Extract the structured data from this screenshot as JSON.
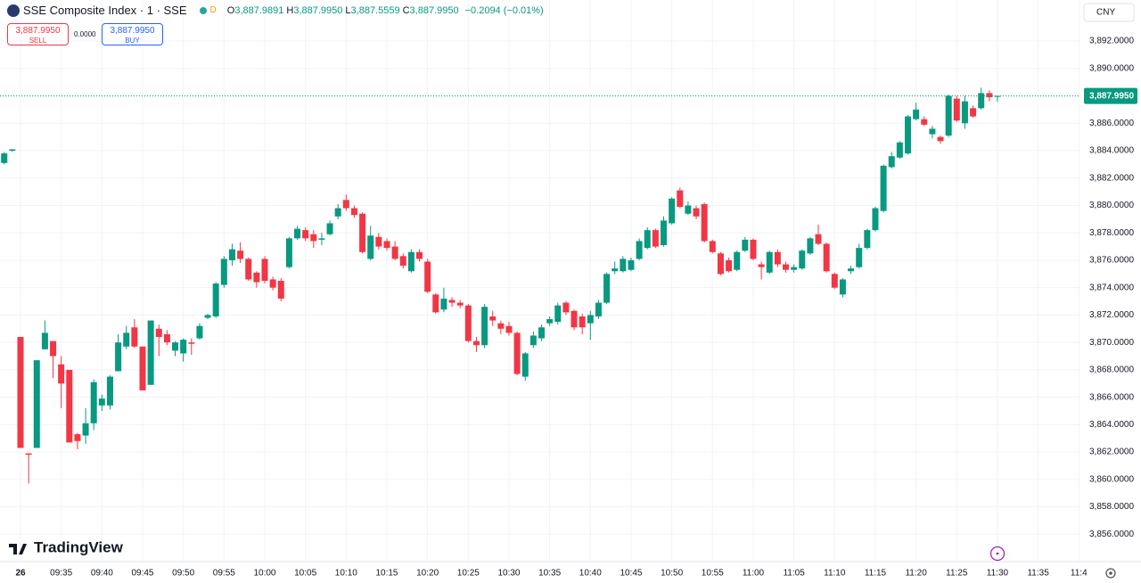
{
  "brand": "TradingView",
  "status": "D",
  "currency": "CNY",
  "change": "−0.2094 (−0.01%)",
  "ohlc_legend": [
    {
      "label": "O",
      "value": "3,887.9891"
    },
    {
      "label": "H",
      "value": "3,887.9950"
    },
    {
      "label": "L",
      "value": "3,887.5559"
    },
    {
      "label": "C",
      "value": "3,887.9950"
    }
  ],
  "sell": {
    "price": "3,887.9950",
    "label": "SELL"
  },
  "buy": {
    "price": "3,887.9950",
    "label": "BUY"
  },
  "spread": "0.0000",
  "chart_data": {
    "type": "candlestick",
    "title": "SSE Composite Index · 1 · SSE",
    "up_color": "#089981",
    "down_color": "#f23645",
    "grid": true,
    "last_price_label": "3,887.9950",
    "ylim": [
      3854,
      3895
    ],
    "yticks": [
      {
        "value": 3856,
        "label": "3,856.0000"
      },
      {
        "value": 3858,
        "label": "3,858.0000"
      },
      {
        "value": 3860,
        "label": "3,860.0000"
      },
      {
        "value": 3862,
        "label": "3,862.0000"
      },
      {
        "value": 3864,
        "label": "3,864.0000"
      },
      {
        "value": 3866,
        "label": "3,866.0000"
      },
      {
        "value": 3868,
        "label": "3,868.0000"
      },
      {
        "value": 3870,
        "label": "3,870.0000"
      },
      {
        "value": 3872,
        "label": "3,872.0000"
      },
      {
        "value": 3874,
        "label": "3,874.0000"
      },
      {
        "value": 3876,
        "label": "3,876.0000"
      },
      {
        "value": 3878,
        "label": "3,878.0000"
      },
      {
        "value": 3880,
        "label": "3,880.0000"
      },
      {
        "value": 3882,
        "label": "3,882.0000"
      },
      {
        "value": 3884,
        "label": "3,884.0000"
      },
      {
        "value": 3886,
        "label": "3,886.0000"
      },
      {
        "value": 3888,
        "label": "3,888.0000"
      },
      {
        "value": 3890,
        "label": "3,890.0000"
      },
      {
        "value": 3892,
        "label": "3,892.0000"
      }
    ],
    "categories": [
      null,
      null,
      "26",
      null,
      null,
      null,
      null,
      "09:35",
      null,
      null,
      null,
      null,
      "09:40",
      null,
      null,
      null,
      null,
      "09:45",
      null,
      null,
      null,
      null,
      "09:50",
      null,
      null,
      null,
      null,
      "09:55",
      null,
      null,
      null,
      null,
      "10:00",
      null,
      null,
      null,
      null,
      "10:05",
      null,
      null,
      null,
      null,
      "10:10",
      null,
      null,
      null,
      null,
      "10:15",
      null,
      null,
      null,
      null,
      "10:20",
      null,
      null,
      null,
      null,
      "10:25",
      null,
      null,
      null,
      null,
      "10:30",
      null,
      null,
      null,
      null,
      "10:35",
      null,
      null,
      null,
      null,
      "10:40",
      null,
      null,
      null,
      null,
      "10:45",
      null,
      null,
      null,
      null,
      "10:50",
      null,
      null,
      null,
      null,
      "10:55",
      null,
      null,
      null,
      null,
      "11:00",
      null,
      null,
      null,
      null,
      "11:05",
      null,
      null,
      null,
      null,
      "11:10",
      null,
      null,
      null,
      null,
      "11:15",
      null,
      null,
      null,
      null,
      "11:20",
      null,
      null,
      null,
      null,
      "11:25",
      null,
      null,
      null,
      null,
      "11:30"
    ],
    "future_labels": [
      "11:35",
      "11:4"
    ],
    "ohlc": [
      [
        3883.1,
        3883.9,
        3883.0,
        3883.8
      ],
      [
        3884.0,
        3884.1,
        3883.9,
        3884.1
      ],
      [
        3870.4,
        3870.4,
        3862.3,
        3862.3
      ],
      [
        3861.9,
        3861.9,
        3859.7,
        3861.8
      ],
      [
        3862.3,
        3868.7,
        3862.3,
        3868.7
      ],
      [
        3869.5,
        3871.6,
        3869.5,
        3870.7
      ],
      [
        3870.1,
        3870.1,
        3867.4,
        3869.0
      ],
      [
        3868.4,
        3869.0,
        3865.2,
        3867.0
      ],
      [
        3868.0,
        3868.0,
        3862.7,
        3862.7
      ],
      [
        3863.3,
        3863.4,
        3862.2,
        3862.8
      ],
      [
        3863.2,
        3865.2,
        3862.6,
        3864.1
      ],
      [
        3864.1,
        3867.3,
        3863.6,
        3867.1
      ],
      [
        3865.4,
        3866.2,
        3865.0,
        3865.9
      ],
      [
        3865.4,
        3867.6,
        3865.1,
        3867.5
      ],
      [
        3867.9,
        3870.6,
        3867.9,
        3870.0
      ],
      [
        3869.7,
        3871.2,
        3869.5,
        3870.7
      ],
      [
        3871.1,
        3871.7,
        3869.6,
        3869.7
      ],
      [
        3869.7,
        3869.7,
        3866.5,
        3866.5
      ],
      [
        3866.9,
        3871.6,
        3866.9,
        3871.6
      ],
      [
        3871.0,
        3871.3,
        3869.0,
        3870.4
      ],
      [
        3870.6,
        3870.9,
        3869.8,
        3870.0
      ],
      [
        3869.4,
        3870.1,
        3869.0,
        3870.0
      ],
      [
        3869.2,
        3870.3,
        3868.6,
        3870.2
      ],
      [
        3870.0,
        3870.3,
        3869.1,
        3869.9
      ],
      [
        3870.3,
        3871.4,
        3870.2,
        3871.2
      ],
      [
        3871.8,
        3872.1,
        3871.7,
        3872.0
      ],
      [
        3871.9,
        3874.4,
        3871.8,
        3874.3
      ],
      [
        3874.2,
        3876.3,
        3874.0,
        3876.1
      ],
      [
        3876.0,
        3877.2,
        3875.6,
        3876.8
      ],
      [
        3876.7,
        3877.3,
        3875.8,
        3876.1
      ],
      [
        3876.1,
        3876.2,
        3874.5,
        3874.6
      ],
      [
        3875.1,
        3875.2,
        3874.0,
        3874.4
      ],
      [
        3876.1,
        3876.3,
        3874.3,
        3874.5
      ],
      [
        3874.6,
        3874.8,
        3873.8,
        3874.0
      ],
      [
        3874.5,
        3874.7,
        3873.0,
        3873.2
      ],
      [
        3875.5,
        3877.7,
        3875.4,
        3877.6
      ],
      [
        3877.6,
        3878.5,
        3877.5,
        3878.3
      ],
      [
        3878.2,
        3878.4,
        3877.4,
        3877.6
      ],
      [
        3877.9,
        3878.2,
        3876.9,
        3877.4
      ],
      [
        3877.5,
        3878.0,
        3877.1,
        3877.6
      ],
      [
        3877.9,
        3878.9,
        3877.8,
        3878.7
      ],
      [
        3879.2,
        3880.1,
        3879.0,
        3879.8
      ],
      [
        3880.4,
        3880.8,
        3879.6,
        3879.8
      ],
      [
        3879.8,
        3880.0,
        3879.1,
        3879.3
      ],
      [
        3879.4,
        3879.5,
        3876.5,
        3876.6
      ],
      [
        3876.1,
        3878.5,
        3876.0,
        3877.8
      ],
      [
        3877.7,
        3878.0,
        3876.8,
        3877.0
      ],
      [
        3877.4,
        3877.6,
        3876.7,
        3876.9
      ],
      [
        3877.0,
        3877.4,
        3876.0,
        3876.1
      ],
      [
        3876.3,
        3876.5,
        3875.4,
        3875.6
      ],
      [
        3875.2,
        3876.8,
        3875.1,
        3876.6
      ],
      [
        3876.6,
        3876.8,
        3875.9,
        3876.1
      ],
      [
        3875.9,
        3876.1,
        3873.6,
        3873.7
      ],
      [
        3873.5,
        3873.6,
        3872.1,
        3872.2
      ],
      [
        3872.4,
        3874.0,
        3872.2,
        3873.2
      ],
      [
        3873.1,
        3873.3,
        3872.6,
        3872.9
      ],
      [
        3872.9,
        3873.1,
        3872.5,
        3872.7
      ],
      [
        3872.7,
        3872.8,
        3870.0,
        3870.1
      ],
      [
        3870.1,
        3870.4,
        3869.3,
        3869.8
      ],
      [
        3869.8,
        3872.8,
        3869.6,
        3872.6
      ],
      [
        3871.9,
        3872.3,
        3871.2,
        3871.6
      ],
      [
        3871.4,
        3871.6,
        3870.6,
        3871.0
      ],
      [
        3871.2,
        3871.5,
        3870.5,
        3870.7
      ],
      [
        3870.7,
        3870.8,
        3867.6,
        3867.7
      ],
      [
        3867.5,
        3869.3,
        3867.2,
        3869.2
      ],
      [
        3869.8,
        3870.8,
        3869.6,
        3870.5
      ],
      [
        3870.3,
        3871.3,
        3870.1,
        3871.1
      ],
      [
        3871.4,
        3871.9,
        3871.2,
        3871.7
      ],
      [
        3871.5,
        3872.9,
        3871.3,
        3872.7
      ],
      [
        3872.9,
        3873.0,
        3872.0,
        3872.2
      ],
      [
        3872.3,
        3872.4,
        3870.9,
        3871.1
      ],
      [
        3871.9,
        3872.1,
        3870.6,
        3871.1
      ],
      [
        3871.4,
        3872.3,
        3870.2,
        3872.0
      ],
      [
        3871.9,
        3873.1,
        3871.7,
        3872.9
      ],
      [
        3872.9,
        3875.1,
        3872.8,
        3875.0
      ],
      [
        3875.2,
        3875.9,
        3875.0,
        3875.4
      ],
      [
        3875.2,
        3876.3,
        3875.1,
        3876.1
      ],
      [
        3875.3,
        3876.2,
        3875.2,
        3876.0
      ],
      [
        3876.1,
        3877.6,
        3876.0,
        3877.4
      ],
      [
        3876.9,
        3878.4,
        3876.8,
        3878.2
      ],
      [
        3878.2,
        3878.3,
        3876.9,
        3877.0
      ],
      [
        3877.1,
        3879.2,
        3877.0,
        3878.9
      ],
      [
        3878.7,
        3880.6,
        3878.6,
        3880.5
      ],
      [
        3881.1,
        3881.3,
        3879.8,
        3879.9
      ],
      [
        3879.4,
        3880.3,
        3879.3,
        3880.0
      ],
      [
        3879.8,
        3880.0,
        3879.0,
        3879.2
      ],
      [
        3880.1,
        3880.2,
        3877.3,
        3877.4
      ],
      [
        3877.4,
        3877.5,
        3876.5,
        3876.6
      ],
      [
        3876.5,
        3876.6,
        3874.9,
        3875.0
      ],
      [
        3876.0,
        3876.2,
        3875.1,
        3875.2
      ],
      [
        3875.3,
        3876.7,
        3875.2,
        3876.6
      ],
      [
        3876.7,
        3877.7,
        3876.6,
        3877.5
      ],
      [
        3877.5,
        3877.6,
        3876.0,
        3876.1
      ],
      [
        3875.7,
        3875.9,
        3874.6,
        3875.5
      ],
      [
        3875.1,
        3876.7,
        3875.0,
        3876.6
      ],
      [
        3876.6,
        3876.8,
        3875.5,
        3875.7
      ],
      [
        3875.7,
        3875.9,
        3875.1,
        3875.3
      ],
      [
        3875.3,
        3875.7,
        3875.1,
        3875.5
      ],
      [
        3875.4,
        3876.8,
        3875.3,
        3876.7
      ],
      [
        3876.5,
        3877.7,
        3876.4,
        3877.6
      ],
      [
        3877.9,
        3878.6,
        3877.1,
        3877.2
      ],
      [
        3877.2,
        3877.3,
        3875.1,
        3875.2
      ],
      [
        3875.0,
        3875.1,
        3873.9,
        3874.0
      ],
      [
        3873.5,
        3874.7,
        3873.3,
        3874.6
      ],
      [
        3875.2,
        3875.6,
        3875.0,
        3875.4
      ],
      [
        3875.5,
        3877.2,
        3875.4,
        3876.9
      ],
      [
        3876.9,
        3878.3,
        3876.8,
        3878.2
      ],
      [
        3878.2,
        3879.9,
        3878.1,
        3879.8
      ],
      [
        3879.6,
        3883.0,
        3879.5,
        3882.9
      ],
      [
        3882.8,
        3883.9,
        3882.7,
        3883.6
      ],
      [
        3883.5,
        3884.7,
        3883.4,
        3884.6
      ],
      [
        3883.8,
        3886.6,
        3883.7,
        3886.5
      ],
      [
        3886.3,
        3887.5,
        3886.2,
        3887.0
      ],
      [
        3886.3,
        3886.5,
        3885.8,
        3885.9
      ],
      [
        3885.2,
        3885.8,
        3884.9,
        3885.6
      ],
      [
        3885.0,
        3885.1,
        3884.5,
        3884.7
      ],
      [
        3885.1,
        3888.1,
        3885.0,
        3888.0
      ],
      [
        3887.8,
        3888.0,
        3886.1,
        3886.2
      ],
      [
        3886.0,
        3888.0,
        3885.6,
        3887.6
      ],
      [
        3887.1,
        3887.3,
        3886.4,
        3886.5
      ],
      [
        3887.1,
        3888.6,
        3887.0,
        3888.2
      ],
      [
        3888.2,
        3888.4,
        3887.6,
        3887.9
      ],
      [
        3887.9891,
        3887.995,
        3887.5559,
        3887.995
      ]
    ]
  }
}
